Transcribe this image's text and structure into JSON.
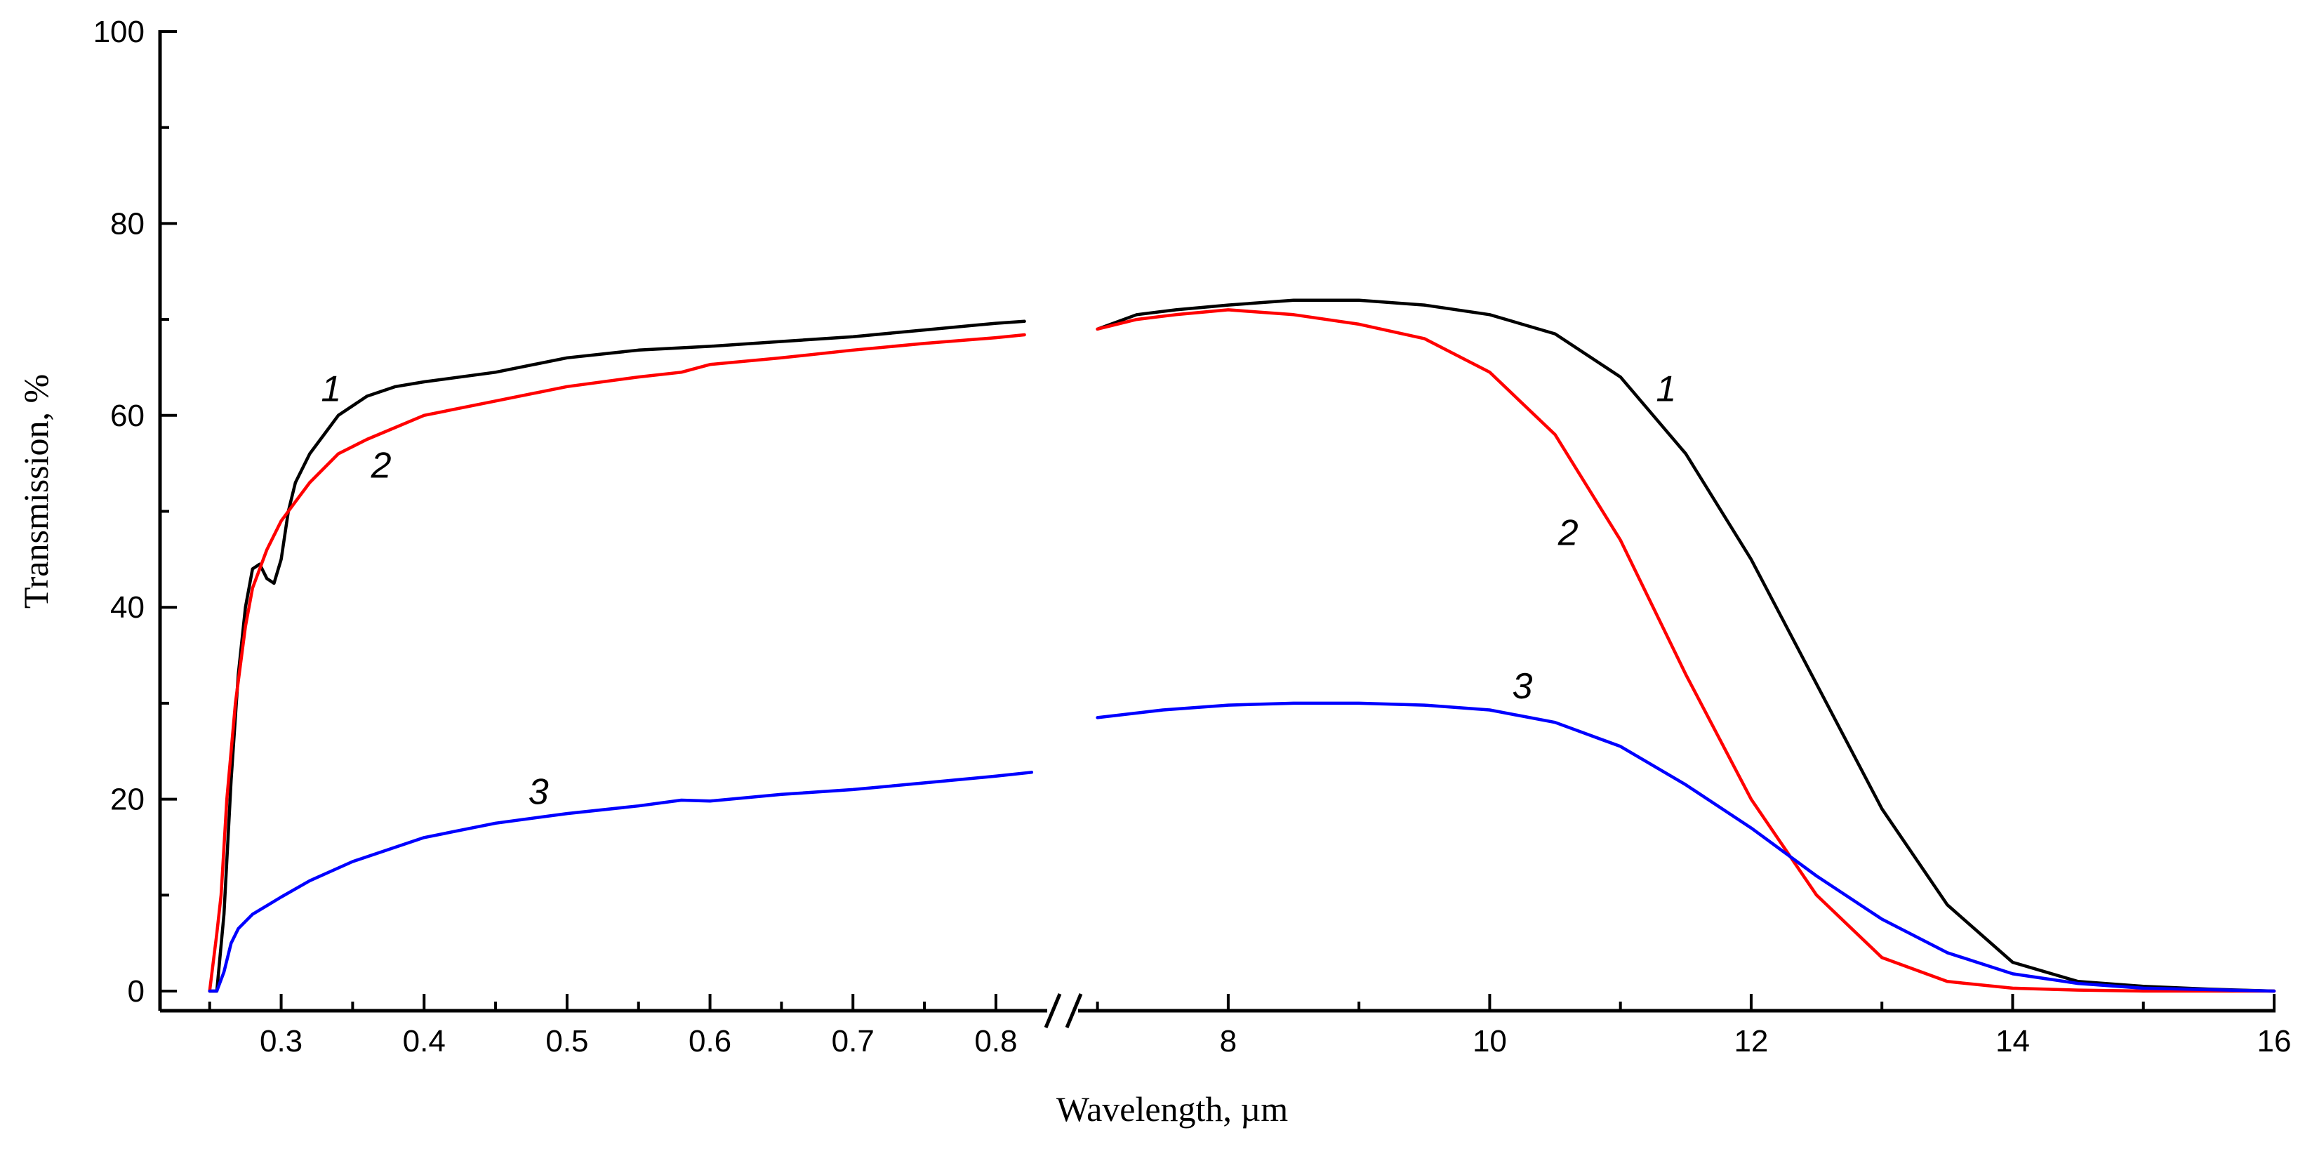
{
  "chart_data": {
    "type": "line",
    "title": "",
    "xlabel": "Wavelength, µm",
    "ylabel": "Transmission, %",
    "ylim": [
      0,
      100
    ],
    "yticks": [
      0,
      20,
      40,
      60,
      80,
      100
    ],
    "grid": false,
    "x_axis_break": true,
    "panels": [
      {
        "name": "uv-vis",
        "xlim": [
          0.23,
          0.83
        ],
        "xticks": [
          0.3,
          0.4,
          0.5,
          0.6,
          0.7,
          0.8
        ],
        "xtick_labels": [
          "0.3",
          "0.4",
          "0.5",
          "0.6",
          "0.7",
          "0.8"
        ]
      },
      {
        "name": "ir",
        "xlim": [
          6.9,
          16
        ],
        "xticks": [
          8,
          10,
          12,
          14,
          16
        ],
        "xtick_labels": [
          "8",
          "10",
          "12",
          "14",
          "16"
        ]
      }
    ],
    "series": [
      {
        "name": "1",
        "label": "1",
        "color": "#000000",
        "segments": [
          {
            "panel": 0,
            "x": [
              0.25,
              0.255,
              0.26,
              0.265,
              0.27,
              0.275,
              0.28,
              0.285,
              0.29,
              0.295,
              0.3,
              0.305,
              0.31,
              0.32,
              0.33,
              0.34,
              0.36,
              0.38,
              0.4,
              0.45,
              0.5,
              0.55,
              0.6,
              0.65,
              0.7,
              0.75,
              0.8,
              0.82
            ],
            "y": [
              0,
              0,
              8,
              22,
              33,
              40,
              44,
              44.5,
              43,
              42.5,
              45,
              50,
              53,
              56,
              58,
              60,
              62,
              63,
              63.5,
              64.5,
              66,
              66.8,
              67.2,
              67.7,
              68.2,
              68.9,
              69.6,
              69.8
            ]
          },
          {
            "panel": 1,
            "x": [
              7.0,
              7.3,
              7.6,
              8.0,
              8.5,
              9.0,
              9.5,
              10.0,
              10.5,
              11.0,
              11.5,
              12.0,
              12.5,
              13.0,
              13.5,
              14.0,
              14.5,
              15.0,
              15.5,
              16.0
            ],
            "y": [
              69,
              70.5,
              71,
              71.5,
              72,
              72,
              71.5,
              70.5,
              68.5,
              64,
              56,
              45,
              32,
              19,
              9,
              3,
              1,
              0.5,
              0.2,
              0
            ]
          }
        ]
      },
      {
        "name": "2",
        "label": "2",
        "color": "#ff0000",
        "segments": [
          {
            "panel": 0,
            "x": [
              0.25,
              0.255,
              0.258,
              0.262,
              0.268,
              0.275,
              0.28,
              0.29,
              0.3,
              0.31,
              0.32,
              0.34,
              0.36,
              0.4,
              0.45,
              0.5,
              0.55,
              0.58,
              0.6,
              0.65,
              0.7,
              0.75,
              0.8,
              0.82
            ],
            "y": [
              0,
              6,
              10,
              20,
              30,
              38,
              42,
              46,
              49,
              51,
              53,
              56,
              57.5,
              60,
              61.5,
              63,
              64,
              64.5,
              65.3,
              66,
              66.8,
              67.5,
              68.1,
              68.4
            ]
          },
          {
            "panel": 1,
            "x": [
              7.0,
              7.3,
              7.6,
              8.0,
              8.5,
              9.0,
              9.5,
              10.0,
              10.5,
              11.0,
              11.5,
              12.0,
              12.5,
              13.0,
              13.5,
              14.0,
              14.5,
              15.0,
              16.0
            ],
            "y": [
              69,
              70,
              70.5,
              71,
              70.5,
              69.5,
              68,
              64.5,
              58,
              47,
              33,
              20,
              10,
              3.5,
              1,
              0.3,
              0.1,
              0,
              0
            ]
          }
        ]
      },
      {
        "name": "3",
        "label": "3",
        "color": "#0000ff",
        "segments": [
          {
            "panel": 0,
            "x": [
              0.25,
              0.255,
              0.26,
              0.265,
              0.27,
              0.28,
              0.3,
              0.32,
              0.35,
              0.4,
              0.45,
              0.5,
              0.55,
              0.58,
              0.6,
              0.65,
              0.7,
              0.75,
              0.8,
              0.825
            ],
            "y": [
              0,
              0,
              2,
              5,
              6.5,
              8,
              9.8,
              11.5,
              13.5,
              16,
              17.5,
              18.5,
              19.3,
              19.9,
              19.8,
              20.5,
              21,
              21.7,
              22.4,
              22.8
            ]
          },
          {
            "panel": 1,
            "x": [
              7.0,
              7.5,
              8.0,
              8.5,
              9.0,
              9.5,
              10.0,
              10.5,
              11.0,
              11.5,
              12.0,
              12.5,
              13.0,
              13.5,
              14.0,
              14.5,
              15.0,
              16.0
            ],
            "y": [
              28.5,
              29.3,
              29.8,
              30,
              30,
              29.8,
              29.3,
              28,
              25.5,
              21.5,
              17,
              12,
              7.5,
              4,
              1.8,
              0.8,
              0.3,
              0
            ]
          }
        ]
      }
    ],
    "annotations": [
      {
        "text": "1",
        "panel": 0,
        "x": 0.335,
        "y": 61.5
      },
      {
        "text": "2",
        "panel": 0,
        "x": 0.37,
        "y": 53.5
      },
      {
        "text": "3",
        "panel": 0,
        "x": 0.48,
        "y": 19.5
      },
      {
        "text": "1",
        "panel": 1,
        "x": 11.35,
        "y": 61.5
      },
      {
        "text": "2",
        "panel": 1,
        "x": 10.6,
        "y": 46.5
      },
      {
        "text": "3",
        "panel": 1,
        "x": 10.25,
        "y": 30.5
      }
    ]
  }
}
